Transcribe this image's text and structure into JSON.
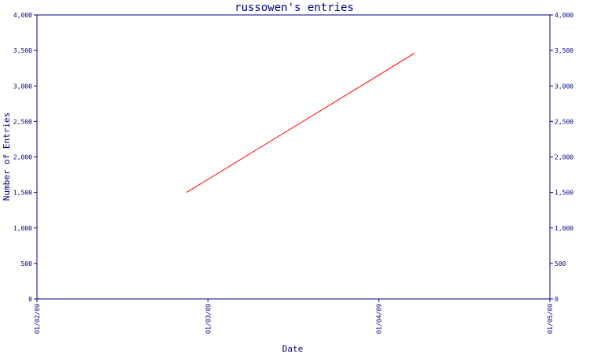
{
  "chart_data": {
    "type": "line",
    "title": "russowen's entries",
    "xlabel": "Date",
    "ylabel": "Number of Entries",
    "x_tick_labels": [
      "01/02/09",
      "01/03/09",
      "01/04/09",
      "01/05/09"
    ],
    "x_ticks": [
      "2009-01-02",
      "2009-01-03",
      "2009-01-04",
      "2009-01-05"
    ],
    "ylim": [
      0,
      4000
    ],
    "y_tick_labels": [
      "0",
      "500",
      "1,000",
      "1,500",
      "2,000",
      "2,500",
      "3,000",
      "3,500",
      "4,000"
    ],
    "y_ticks": [
      0,
      500,
      1000,
      1500,
      2000,
      2500,
      3000,
      3500,
      4000
    ],
    "series": [
      {
        "x": [
          "2009-01-02 21:00",
          "2009-01-04 05:00"
        ],
        "y": [
          1500,
          3460
        ]
      }
    ],
    "grid": false,
    "legend": "none",
    "colors": {
      "axis": "#000080",
      "text": "#000080",
      "series": "#ff0000"
    }
  }
}
